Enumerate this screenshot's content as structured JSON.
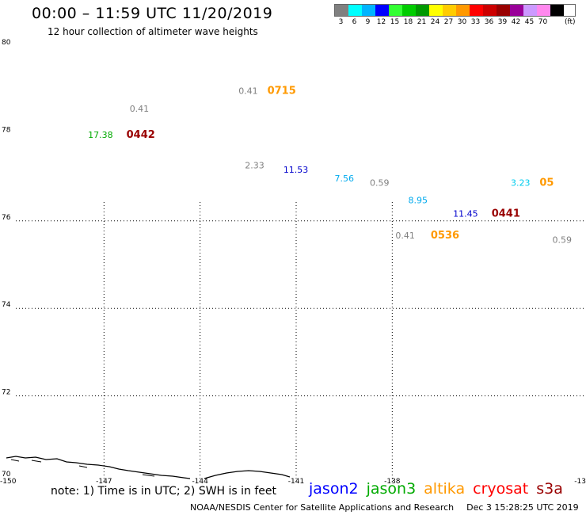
{
  "header": {
    "title": "00:00 – 11:59 UTC 11/20/2019",
    "subtitle": "12 hour collection of altimeter wave heights"
  },
  "color_scale": {
    "unit": "(ft)",
    "bins": [
      {
        "label": "3",
        "color": "#808080"
      },
      {
        "label": "6",
        "color": "#00ffff"
      },
      {
        "label": "9",
        "color": "#00b4ff"
      },
      {
        "label": "12",
        "color": "#0000ff"
      },
      {
        "label": "15",
        "color": "#33ff33"
      },
      {
        "label": "18",
        "color": "#00cc00"
      },
      {
        "label": "21",
        "color": "#009900"
      },
      {
        "label": "24",
        "color": "#ffff00"
      },
      {
        "label": "27",
        "color": "#ffcc00"
      },
      {
        "label": "30",
        "color": "#ff9900"
      },
      {
        "label": "33",
        "color": "#ff0000"
      },
      {
        "label": "36",
        "color": "#cc0000"
      },
      {
        "label": "39",
        "color": "#990000"
      },
      {
        "label": "42",
        "color": "#990099"
      },
      {
        "label": "45",
        "color": "#cc99ff"
      },
      {
        "label": "70",
        "color": "#ff88ee"
      },
      {
        "label": "",
        "color": "#000000"
      }
    ]
  },
  "map": {
    "lon_range": [
      -150,
      -132
    ],
    "lat_range": [
      70,
      80
    ],
    "lon_labels": [
      "-150",
      "-147",
      "-144",
      "-141",
      "-138",
      "-13"
    ],
    "lat_labels": [
      "70",
      "72",
      "74",
      "76",
      "78",
      "80"
    ],
    "grid_lons": [
      -147,
      -144,
      -141,
      -138
    ],
    "grid_lats": [
      72,
      74,
      76
    ],
    "observations": [
      {
        "text": "0.41",
        "lon": -142.8,
        "lat": 78.9,
        "color": "#808080"
      },
      {
        "text": "0715",
        "lon": -141.9,
        "lat": 78.9,
        "color": "#ff9900",
        "time": true
      },
      {
        "text": "0.41",
        "lon": -146.2,
        "lat": 78.5,
        "color": "#808080"
      },
      {
        "text": "17.38",
        "lon": -147.5,
        "lat": 77.9,
        "color": "#00aa00"
      },
      {
        "text": "0442",
        "lon": -146.3,
        "lat": 77.9,
        "color": "#990000",
        "time": true
      },
      {
        "text": "2.33",
        "lon": -142.6,
        "lat": 77.2,
        "color": "#808080"
      },
      {
        "text": "11.53",
        "lon": -141.4,
        "lat": 77.1,
        "color": "#0000cc"
      },
      {
        "text": "7.56",
        "lon": -139.8,
        "lat": 76.9,
        "color": "#00aaee"
      },
      {
        "text": "0.59",
        "lon": -138.7,
        "lat": 76.8,
        "color": "#808080"
      },
      {
        "text": "3.23",
        "lon": -134.3,
        "lat": 76.8,
        "color": "#00ccee"
      },
      {
        "text": "05",
        "lon": -133.4,
        "lat": 76.8,
        "color": "#ff9900",
        "time": true
      },
      {
        "text": "8.95",
        "lon": -137.5,
        "lat": 76.4,
        "color": "#00aaee"
      },
      {
        "text": "11.45",
        "lon": -136.1,
        "lat": 76.1,
        "color": "#0000cc"
      },
      {
        "text": "0441",
        "lon": -134.9,
        "lat": 76.1,
        "color": "#990000",
        "time": true
      },
      {
        "text": "0.41",
        "lon": -137.9,
        "lat": 75.6,
        "color": "#808080"
      },
      {
        "text": "0536",
        "lon": -136.8,
        "lat": 75.6,
        "color": "#ff9900",
        "time": true
      },
      {
        "text": "0.59",
        "lon": -133.0,
        "lat": 75.5,
        "color": "#808080"
      }
    ]
  },
  "footer": {
    "note": "note: 1) Time is in UTC; 2) SWH is in feet",
    "satellites": [
      {
        "name": "jason2",
        "color": "#0000ff"
      },
      {
        "name": "jason3",
        "color": "#00aa00"
      },
      {
        "name": "altika",
        "color": "#ff9900"
      },
      {
        "name": "cryosat",
        "color": "#ff0000"
      },
      {
        "name": "s3a",
        "color": "#990000"
      }
    ],
    "credit": "NOAA/NESDIS Center for Satellite Applications and Research",
    "timestamp": "Dec  3 15:28:25 UTC 2019"
  }
}
